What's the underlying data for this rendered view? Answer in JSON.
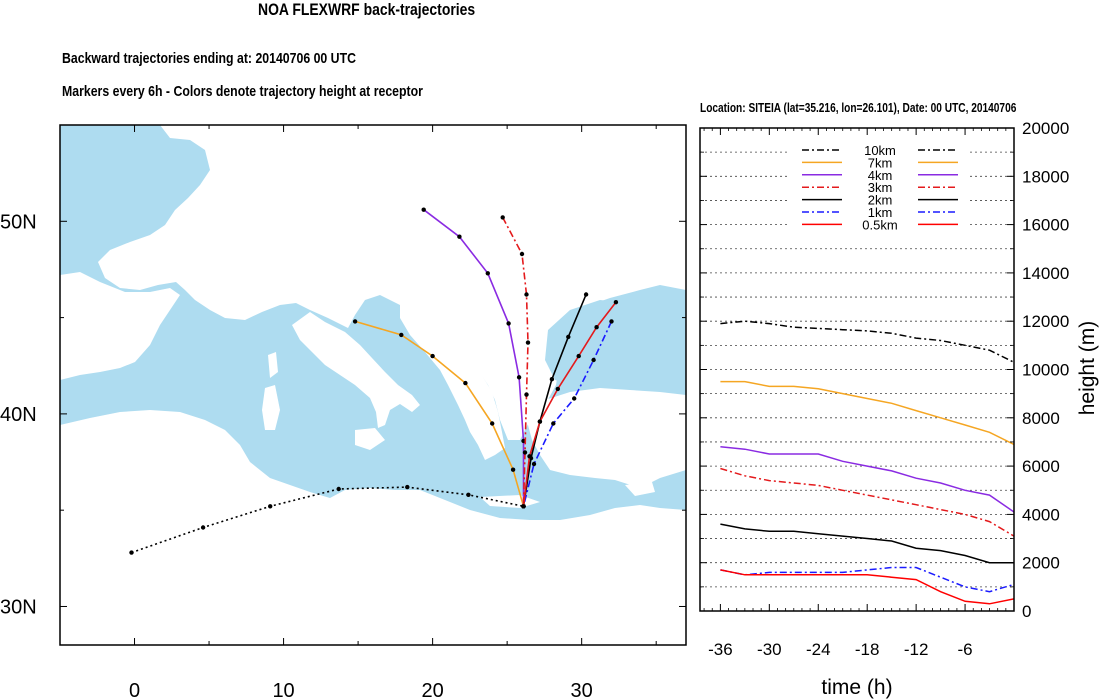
{
  "titles": {
    "main": "NOA FLEXWRF back-trajectories",
    "ending": "Backward trajectories ending at: 20140706  00 UTC",
    "markers": "Markers every 6h - Colors denote trajectory height at receptor",
    "location": "Location: SITEIA (lat=35.216,  lon=26.101), Date: 00 UTC, 20140706"
  },
  "chart_data": [
    {
      "type": "map",
      "xticks": [
        0,
        10,
        20,
        30
      ],
      "xtick_labels": [
        "0",
        "10",
        "20",
        "30"
      ],
      "yticks": [
        30,
        40,
        50
      ],
      "ytick_labels": [
        "30N",
        "40N",
        "50N"
      ],
      "xlim": [
        -5,
        37
      ],
      "ylim": [
        28,
        55
      ],
      "receptor": {
        "lon": 26.101,
        "lat": 35.216
      },
      "colors": {
        "ocean": "#aedcf0",
        "land": "#ffffff"
      },
      "series": [
        {
          "height": "10km",
          "color": "#000000",
          "dash": "dotted",
          "points": [
            [
              -0.2,
              32.8
            ],
            [
              4.6,
              34.1
            ],
            [
              9.1,
              35.2
            ],
            [
              13.7,
              36.1
            ],
            [
              18.3,
              36.2
            ],
            [
              22.4,
              35.8
            ],
            [
              26.1,
              35.2
            ]
          ]
        },
        {
          "height": "7km",
          "color": "#f5a623",
          "dash": "solid",
          "points": [
            [
              14.8,
              44.8
            ],
            [
              17.9,
              44.1
            ],
            [
              20.0,
              43.0
            ],
            [
              22.2,
              41.6
            ],
            [
              24.0,
              39.5
            ],
            [
              25.4,
              37.1
            ],
            [
              26.1,
              35.2
            ]
          ]
        },
        {
          "height": "4km",
          "color": "#8a2be2",
          "dash": "solid",
          "points": [
            [
              19.4,
              50.6
            ],
            [
              21.8,
              49.2
            ],
            [
              23.7,
              47.3
            ],
            [
              25.1,
              44.7
            ],
            [
              25.8,
              41.9
            ],
            [
              26.1,
              38.6
            ],
            [
              26.1,
              35.2
            ]
          ]
        },
        {
          "height": "3km",
          "color": "#e41a1c",
          "dash": "dashdot",
          "points": [
            [
              24.7,
              50.2
            ],
            [
              26.0,
              48.3
            ],
            [
              26.3,
              46.2
            ],
            [
              26.4,
              43.7
            ],
            [
              26.3,
              41.0
            ],
            [
              26.2,
              38.0
            ],
            [
              26.1,
              35.2
            ]
          ]
        },
        {
          "height": "2km",
          "color": "#000000",
          "dash": "solid",
          "points": [
            [
              30.3,
              46.2
            ],
            [
              29.1,
              44.0
            ],
            [
              28.0,
              41.8
            ],
            [
              27.2,
              39.6
            ],
            [
              26.6,
              37.7
            ],
            [
              26.1,
              35.2
            ]
          ]
        },
        {
          "height": "1km",
          "color": "#1a1aff",
          "dash": "dashdot",
          "points": [
            [
              32.0,
              44.8
            ],
            [
              30.8,
              42.8
            ],
            [
              29.5,
              40.8
            ],
            [
              28.1,
              39.5
            ],
            [
              26.8,
              37.4
            ],
            [
              26.1,
              35.2
            ]
          ]
        },
        {
          "height": "0.5km",
          "color": "#e41a1c",
          "dash": "solid",
          "points": [
            [
              32.3,
              45.8
            ],
            [
              31.0,
              44.5
            ],
            [
              29.8,
              43.0
            ],
            [
              28.4,
              41.3
            ],
            [
              27.2,
              39.6
            ],
            [
              26.5,
              37.8
            ],
            [
              26.1,
              35.2
            ]
          ]
        }
      ]
    },
    {
      "type": "line",
      "title": "",
      "xlabel": "time (h)",
      "ylabel": "height (m)",
      "xlim": [
        -38.5,
        0
      ],
      "ylim": [
        0,
        20000
      ],
      "xticks": [
        -36,
        -30,
        -24,
        -18,
        -12,
        -6
      ],
      "xtick_labels": [
        "-36",
        "-30",
        "-24",
        "-18",
        "-12",
        "-6"
      ],
      "yticks": [
        0,
        2000,
        4000,
        6000,
        8000,
        10000,
        12000,
        14000,
        16000,
        18000,
        20000
      ],
      "ytick_labels": [
        "0",
        "2000",
        "4000",
        "6000",
        "8000",
        "10000",
        "12000",
        "14000",
        "16000",
        "18000",
        "20000"
      ],
      "grid_lines": [
        1000,
        2000,
        3000,
        4000,
        5000,
        6000,
        7000,
        8000,
        9000,
        10000,
        11000,
        12000,
        13000,
        14000,
        15000,
        16000,
        17000,
        18000,
        19000
      ],
      "grid": "dotted horizontal",
      "legend_placement": "top-center",
      "series": [
        {
          "name": "10km",
          "color": "#000000",
          "dash": "dashdot",
          "x": [
            -36,
            -33,
            -30,
            -27,
            -24,
            -21,
            -18,
            -15,
            -12,
            -9,
            -6,
            -3,
            0
          ],
          "y": [
            11900,
            12000,
            11900,
            11750,
            11700,
            11650,
            11600,
            11500,
            11300,
            11200,
            11000,
            10800,
            10300
          ]
        },
        {
          "name": "7km",
          "color": "#f5a623",
          "dash": "solid",
          "x": [
            -36,
            -33,
            -30,
            -27,
            -24,
            -21,
            -18,
            -15,
            -12,
            -9,
            -6,
            -3,
            0
          ],
          "y": [
            9500,
            9500,
            9300,
            9300,
            9200,
            9000,
            8800,
            8600,
            8300,
            8000,
            7700,
            7400,
            6900
          ]
        },
        {
          "name": "4km",
          "color": "#8a2be2",
          "dash": "solid",
          "x": [
            -36,
            -33,
            -30,
            -27,
            -24,
            -21,
            -18,
            -15,
            -12,
            -9,
            -6,
            -3,
            0
          ],
          "y": [
            6800,
            6700,
            6500,
            6500,
            6500,
            6200,
            6000,
            5800,
            5500,
            5300,
            5000,
            4800,
            4100
          ]
        },
        {
          "name": "3km",
          "color": "#e41a1c",
          "dash": "dashdot",
          "x": [
            -36,
            -33,
            -30,
            -27,
            -24,
            -21,
            -18,
            -15,
            -12,
            -9,
            -6,
            -3,
            0
          ],
          "y": [
            5900,
            5600,
            5400,
            5300,
            5200,
            5000,
            4800,
            4600,
            4400,
            4200,
            4000,
            3700,
            3100
          ]
        },
        {
          "name": "2km",
          "color": "#000000",
          "dash": "solid",
          "x": [
            -36,
            -33,
            -30,
            -27,
            -24,
            -21,
            -18,
            -15,
            -12,
            -9,
            -6,
            -3,
            0
          ],
          "y": [
            3600,
            3400,
            3300,
            3300,
            3200,
            3100,
            3000,
            2900,
            2600,
            2500,
            2300,
            2000,
            2000
          ]
        },
        {
          "name": "1km",
          "color": "#1a1aff",
          "dash": "dashdot",
          "x": [
            -36,
            -33,
            -30,
            -27,
            -24,
            -21,
            -18,
            -15,
            -12,
            -9,
            -6,
            -3,
            0
          ],
          "y": [
            1700,
            1500,
            1600,
            1600,
            1600,
            1600,
            1700,
            1800,
            1800,
            1400,
            1000,
            800,
            1100
          ]
        },
        {
          "name": "0.5km",
          "color": "#ff0000",
          "dash": "solid",
          "x": [
            -36,
            -33,
            -30,
            -27,
            -24,
            -21,
            -18,
            -15,
            -12,
            -9,
            -6,
            -3,
            0
          ],
          "y": [
            1700,
            1500,
            1500,
            1500,
            1500,
            1500,
            1500,
            1400,
            1300,
            800,
            400,
            300,
            500
          ]
        }
      ]
    }
  ]
}
